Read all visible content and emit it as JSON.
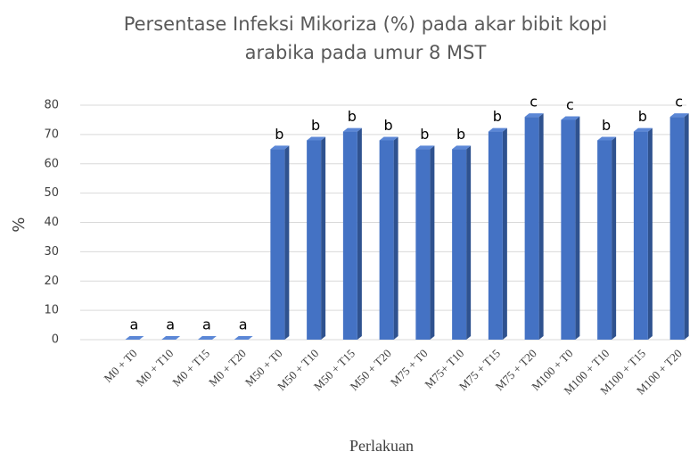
{
  "chart_data": {
    "type": "bar",
    "title": [
      "Persentase Infeksi Mikoriza  (%) pada  akar bibit kopi",
      "arabika pada umur 8 MST"
    ],
    "xlabel": "Perlakuan",
    "ylabel": "%",
    "categories": [
      "M0 + T0",
      "M0 + T10",
      "M0 + T15",
      "M0 + T20",
      "M50 + T0",
      "M50 + T10",
      "M50 + T15",
      "M50 + T20",
      "M75 + T0",
      "M75+ T10",
      "M75 + T15",
      "M75 + T20",
      "M100 + T0",
      "M100 + T10",
      "M100 + T15",
      "M100 + T20"
    ],
    "values": [
      0,
      0,
      0,
      0,
      65,
      68,
      71,
      68,
      65,
      65,
      71,
      76,
      75,
      68,
      71,
      76
    ],
    "annotations": [
      "a",
      "a",
      "a",
      "a",
      "b",
      "b",
      "b",
      "b",
      "b",
      "b",
      "b",
      "c",
      "c",
      "b",
      "b",
      "c"
    ],
    "color": "#4472c4",
    "ylim": [
      0,
      80
    ],
    "yticks": [
      0,
      10,
      20,
      30,
      40,
      50,
      60,
      70,
      80
    ],
    "grid": true
  }
}
